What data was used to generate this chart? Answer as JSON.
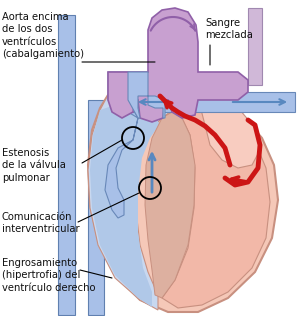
{
  "bg_color": "#ffffff",
  "heart_fill": "#f5c8b8",
  "heart_stroke": "#c89080",
  "heart_lw": 1.2,
  "lv_fill": "#f0b0a0",
  "rv_fill": "#c8d8f0",
  "rv_fill2": "#b0c8e8",
  "aorta_fill": "#c8a0d0",
  "aorta_stroke": "#9060a8",
  "pulm_fill": "#a8c0e8",
  "pulm_stroke": "#6888b8",
  "vena_fill": "#a8c0e8",
  "vena_stroke": "#6080b0",
  "red_color": "#cc1515",
  "blue_color": "#5888c0",
  "dark_red": "#cc2020",
  "label_color": "#111111",
  "label_fs": 7.2,
  "ann_lw": 0.8,
  "labels": {
    "aorta": "Aorta encima\nde los dos\nventrículos\n(cabalgamiento)",
    "sangre": "Sangre\nmezclada",
    "estenosis": "Estenosis\nde la válvula\npulmonar",
    "comunicacion": "Comunicación\ninterventricular",
    "engrosamiento": "Engrosamiento\n(hipertrofia) del\nventrículo derecho"
  }
}
